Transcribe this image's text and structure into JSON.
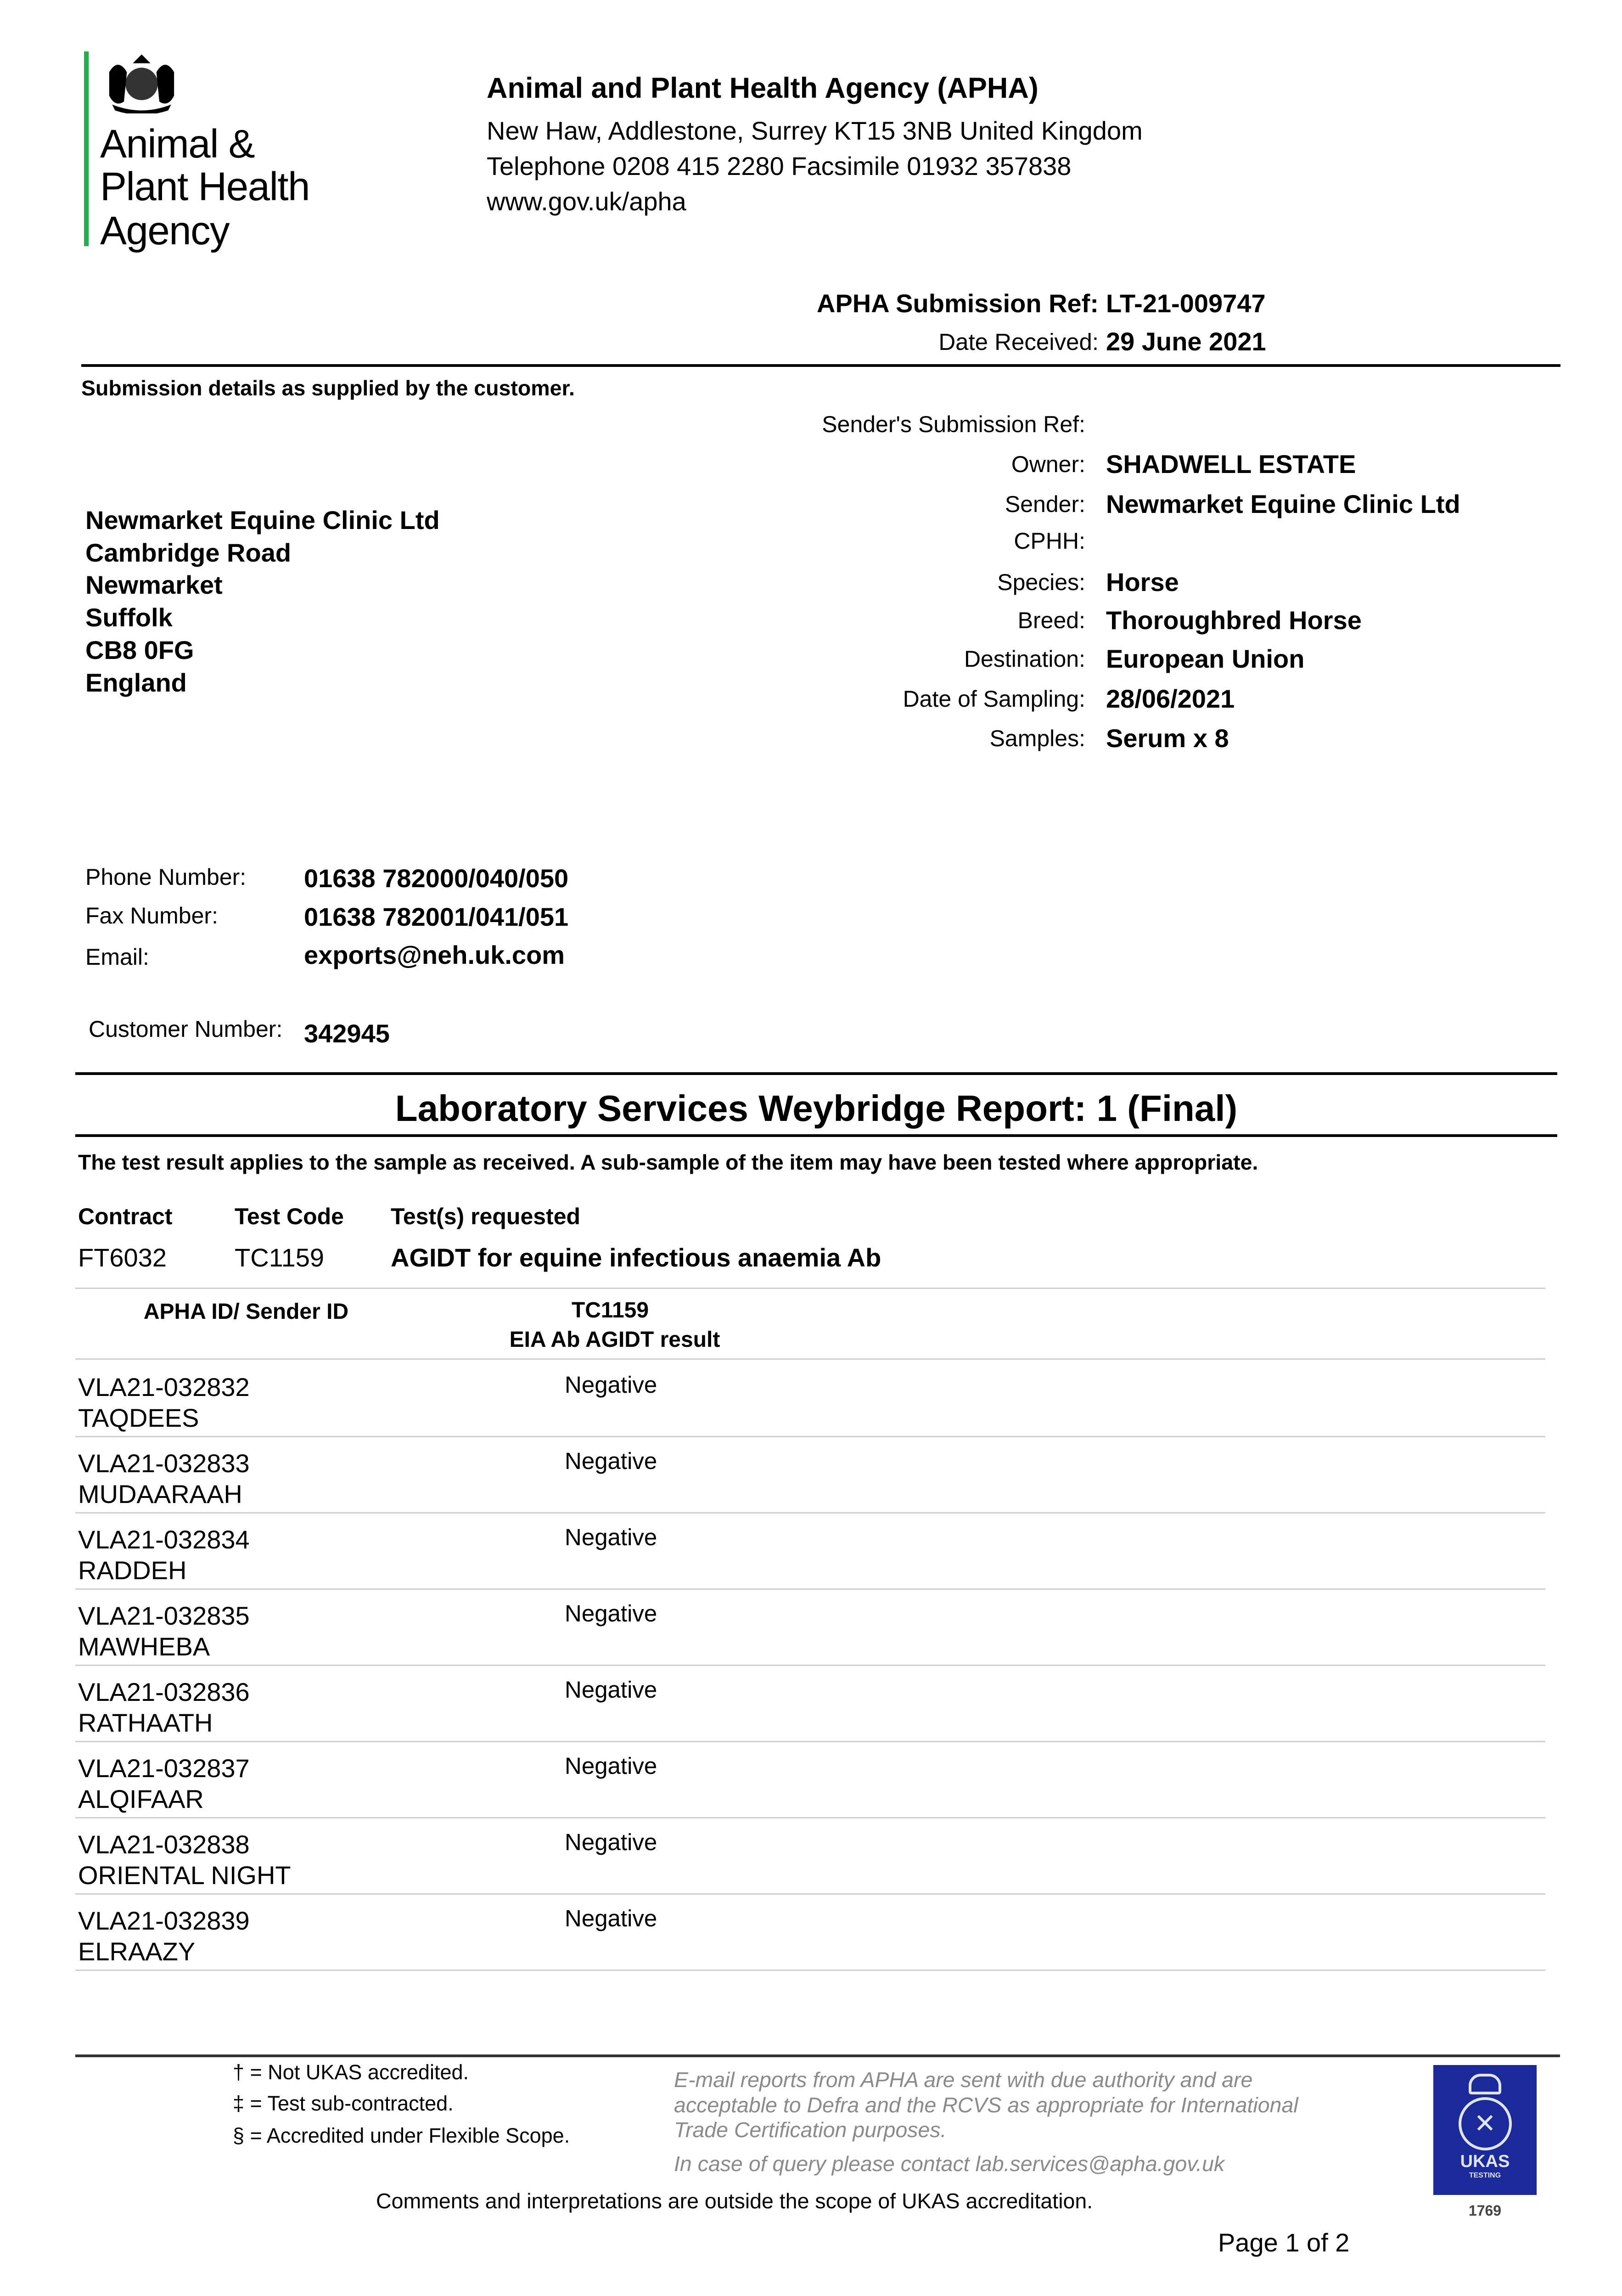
{
  "logo": {
    "lines": [
      "Animal &",
      "Plant Health",
      "Agency"
    ],
    "brand_color": "#1fb24a",
    "icon": "royal-coat-of-arms"
  },
  "header": {
    "org": "Animal and Plant Health Agency (APHA)",
    "address": "New Haw, Addlestone, Surrey KT15 3NB United Kingdom",
    "telephone": "Telephone 0208 415 2280 Facsimile 01932 357838",
    "web": "www.gov.uk/apha"
  },
  "submission": {
    "ref_label": "APHA Submission Ref:",
    "ref_value": "LT-21-009747",
    "date_label": "Date Received:",
    "date_value": "29 June 2021"
  },
  "details_heading": "Submission details as supplied by the customer.",
  "details": [
    {
      "label": "Sender's Submission Ref:",
      "value": ""
    },
    {
      "label": "Owner:",
      "value": "SHADWELL ESTATE"
    },
    {
      "label": "Sender:",
      "value": "Newmarket Equine Clinic Ltd"
    },
    {
      "label": "CPHH:",
      "value": ""
    },
    {
      "label": "Species:",
      "value": "Horse"
    },
    {
      "label": "Breed:",
      "value": "Thoroughbred Horse"
    },
    {
      "label": "Destination:",
      "value": "European Union"
    },
    {
      "label": "Date of Sampling:",
      "value": "28/06/2021"
    },
    {
      "label": "Samples:",
      "value": "Serum x 8"
    }
  ],
  "address": [
    "Newmarket Equine Clinic Ltd",
    "Cambridge Road",
    "Newmarket",
    "Suffolk",
    "CB8 0FG",
    "England"
  ],
  "contact": {
    "phone_label": "Phone Number:",
    "phone": "01638 782000/040/050",
    "fax_label": "Fax Number:",
    "fax": "01638 782001/041/051",
    "email_label": "Email:",
    "email": "exports@neh.uk.com",
    "customer_label": "Customer Number:",
    "customer": "342945"
  },
  "report": {
    "title": "Laboratory Services Weybridge Report: 1 (Final)",
    "notice": "The test result applies to the sample as received. A sub-sample of the item may have been tested where appropriate.",
    "contract_header": "Contract",
    "testcode_header": "Test Code",
    "tests_header": "Test(s) requested",
    "contract": "FT6032",
    "testcode": "TC1159",
    "tests": "AGIDT for equine infectious anaemia Ab"
  },
  "table": {
    "col1": "APHA ID/ Sender ID",
    "col2_line1": "TC1159",
    "col2_line2": "EIA Ab AGIDT result",
    "rows": [
      {
        "id": "VLA21-032832",
        "name": "TAQDEES",
        "result": "Negative"
      },
      {
        "id": "VLA21-032833",
        "name": "MUDAARAAH",
        "result": "Negative"
      },
      {
        "id": "VLA21-032834",
        "name": "RADDEH",
        "result": "Negative"
      },
      {
        "id": "VLA21-032835",
        "name": "MAWHEBA",
        "result": "Negative"
      },
      {
        "id": "VLA21-032836",
        "name": "RATHAATH",
        "result": "Negative"
      },
      {
        "id": "VLA21-032837",
        "name": "ALQIFAAR",
        "result": "Negative"
      },
      {
        "id": "VLA21-032838",
        "name": "ORIENTAL NIGHT",
        "result": "Negative"
      },
      {
        "id": "VLA21-032839",
        "name": "ELRAAZY",
        "result": "Negative"
      }
    ]
  },
  "footer": {
    "legend": [
      "† = Not UKAS accredited.",
      "‡ = Test sub-contracted.",
      "§ = Accredited under Flexible Scope."
    ],
    "note": [
      "E-mail reports from APHA are sent with due authority and are",
      "acceptable to Defra and the RCVS as appropriate for International",
      "Trade Certification purposes."
    ],
    "query": "In case of query please contact lab.services@apha.gov.uk",
    "comments": "Comments and interpretations are outside the scope of UKAS accreditation.",
    "page": "Page 1 of  2",
    "ukas": {
      "text": "UKAS",
      "sub": "TESTING",
      "number": "1769",
      "color": "#1a2a9a"
    }
  }
}
